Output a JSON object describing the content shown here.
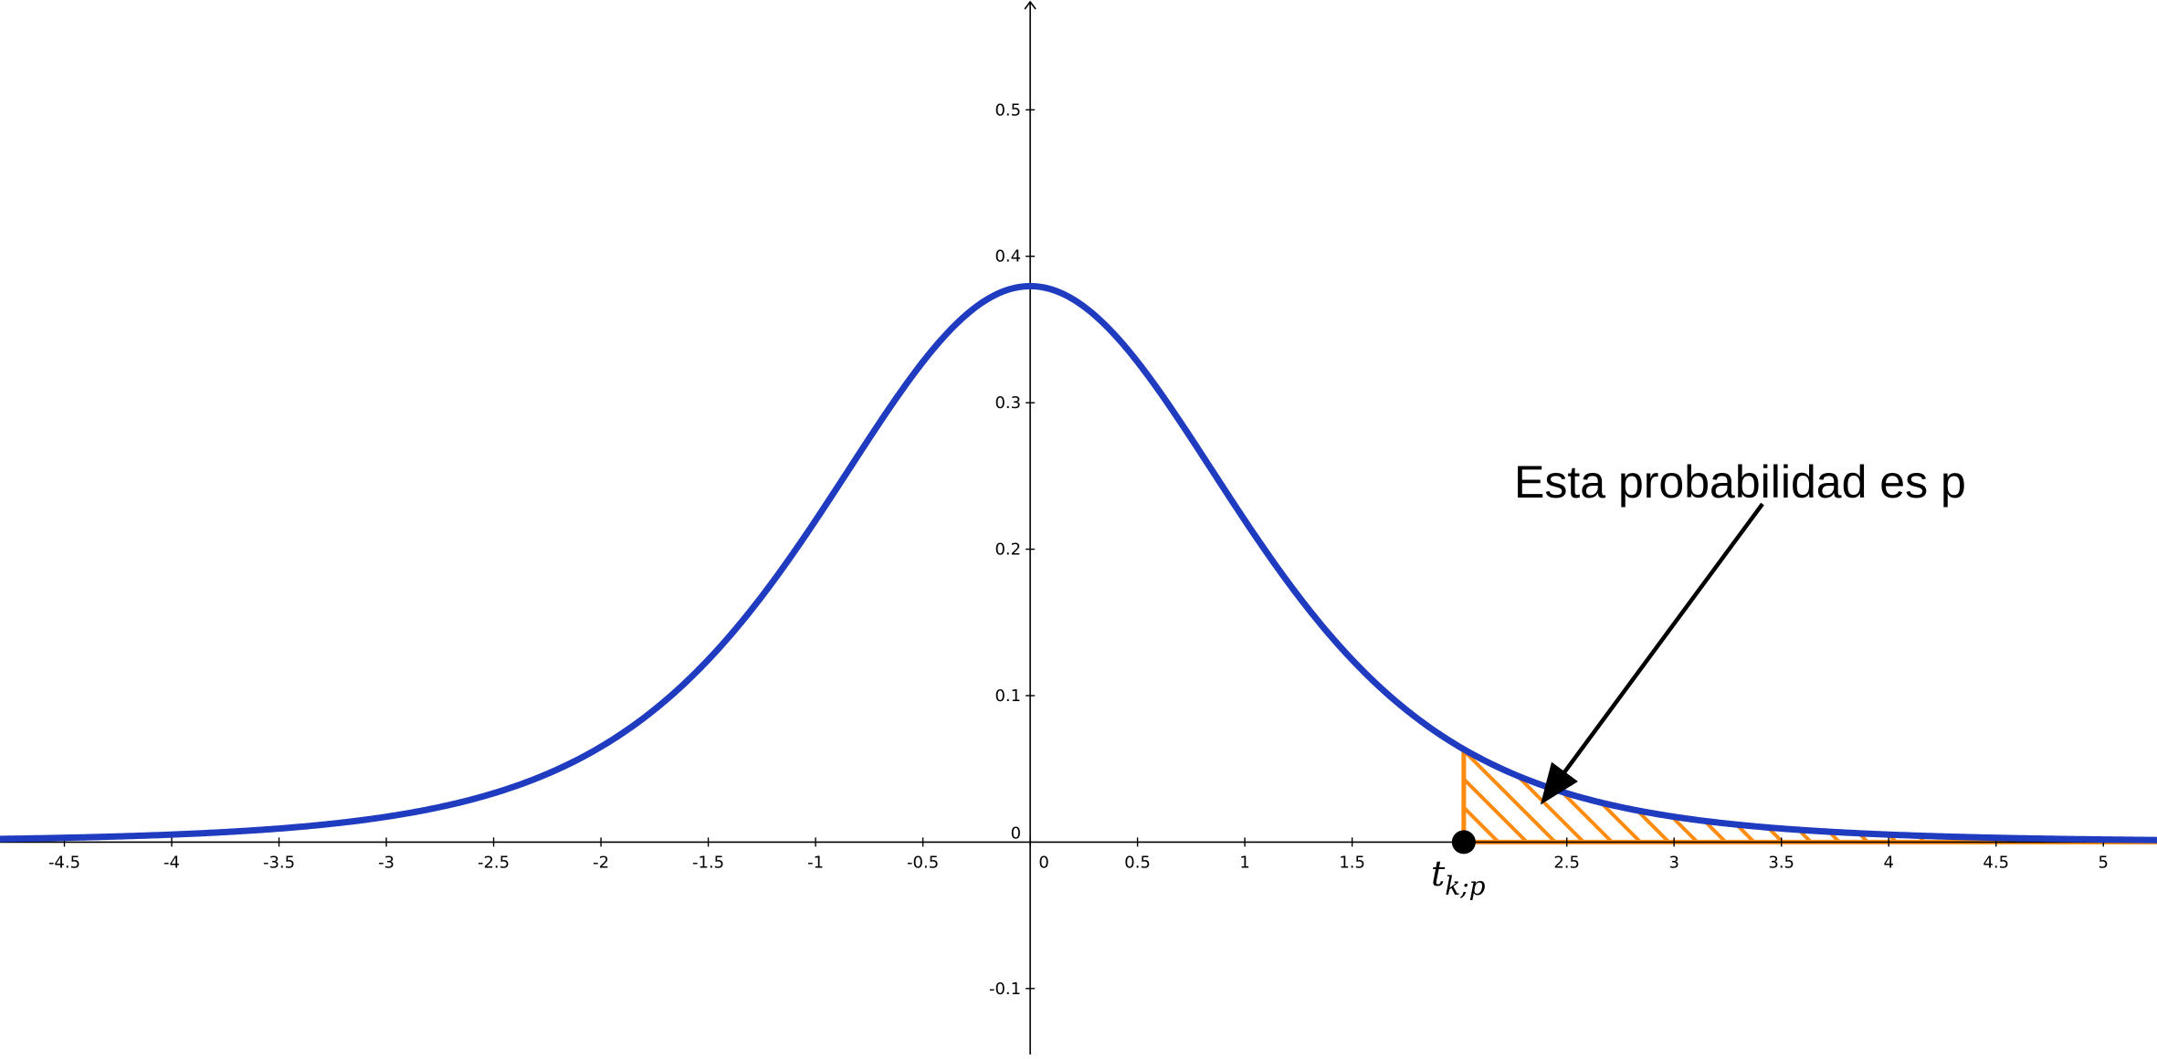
{
  "chart_data": {
    "type": "line",
    "title": "",
    "xlabel": "",
    "ylabel": "",
    "xlim": [
      -4.8,
      5.25
    ],
    "ylim": [
      -0.145,
      0.575
    ],
    "grid": false,
    "x_ticks": [
      -4.5,
      -4,
      -3.5,
      -3,
      -2.5,
      -2,
      -1.5,
      -1,
      -0.5,
      0,
      0.5,
      1,
      1.5,
      2.5,
      3,
      3.5,
      4,
      4.5,
      5
    ],
    "x_tick_labels": [
      "-4.5",
      "-4",
      "-3.5",
      "-3",
      "-2.5",
      "-2",
      "-1.5",
      "-1",
      "-0.5",
      "0",
      "0.5",
      "1",
      "1.5",
      "2.5",
      "3",
      "3.5",
      "4",
      "4.5",
      "5"
    ],
    "y_ticks": [
      0.5,
      0.4,
      0.3,
      0.2,
      0.1,
      0,
      -0.1
    ],
    "y_tick_labels": [
      "0.5",
      "0.4",
      "0.3",
      "0.2",
      "0.1",
      "0",
      "-0.1"
    ],
    "series": [
      {
        "distribution": "Student t",
        "degrees_of_freedom": 5,
        "peak": 0.38,
        "color": "#1f3bbf"
      }
    ],
    "shaded_region": {
      "from_x": 2.02,
      "to_x": 5.25,
      "color": "#ff8c10",
      "pattern": "diagonal hatch"
    },
    "critical_point": {
      "x": 2.02,
      "label_base": "t",
      "label_subscript": "k;p"
    },
    "annotation": {
      "text": "Esta probabilidad es p",
      "points_to_x": 2.4,
      "points_to_y": 0.03
    }
  }
}
